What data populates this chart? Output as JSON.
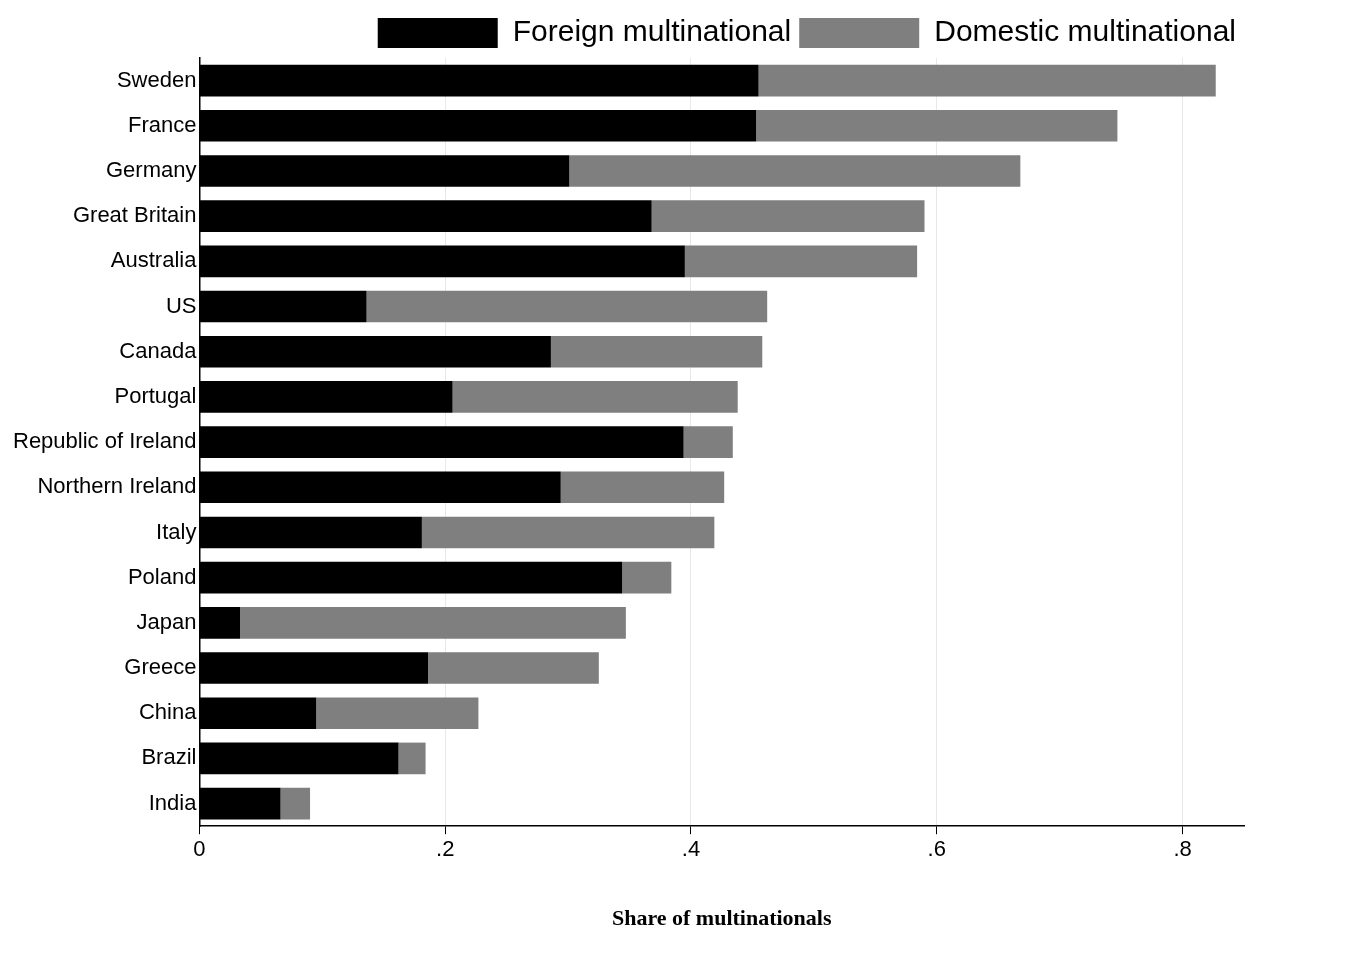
{
  "chart_data": {
    "type": "bar",
    "orientation": "horizontal",
    "stacked": true,
    "categories": [
      "Sweden",
      "France",
      "Germany",
      "Great Britain",
      "Australia",
      "US",
      "Canada",
      "Portugal",
      "Republic of Ireland",
      "Northern Ireland",
      "Italy",
      "Poland",
      "Japan",
      "Greece",
      "China",
      "Brazil",
      "India"
    ],
    "series": [
      {
        "name": "Foreign multinational",
        "color": "#000000",
        "values": [
          0.455,
          0.453,
          0.301,
          0.368,
          0.395,
          0.136,
          0.286,
          0.206,
          0.394,
          0.294,
          0.181,
          0.344,
          0.033,
          0.186,
          0.095,
          0.162,
          0.066
        ]
      },
      {
        "name": "Domestic multinational",
        "color": "#7f7f7f",
        "values": [
          0.372,
          0.294,
          0.367,
          0.222,
          0.189,
          0.326,
          0.172,
          0.232,
          0.04,
          0.133,
          0.238,
          0.04,
          0.314,
          0.139,
          0.132,
          0.022,
          0.024
        ]
      }
    ],
    "xlabel": "Share of multinationals",
    "xlim": [
      0,
      0.85
    ],
    "xticks": [
      {
        "value": 0,
        "label": "0"
      },
      {
        "value": 0.2,
        "label": ".2"
      },
      {
        "value": 0.4,
        "label": ".4"
      },
      {
        "value": 0.6,
        "label": ".6"
      },
      {
        "value": 0.8,
        "label": ".8"
      }
    ],
    "grid": "x",
    "legend": "top right"
  }
}
